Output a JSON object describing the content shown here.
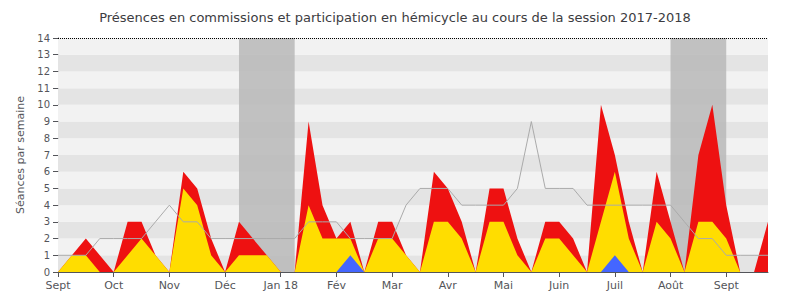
{
  "chart_data": {
    "type": "area",
    "title": "Présences en commissions et participation en hémicycle au cours de la session 2017-2018",
    "ylabel": "Séances par semaine",
    "x": [
      0,
      1,
      2,
      3,
      4,
      5,
      6,
      7,
      8,
      9,
      10,
      11,
      12,
      13,
      14,
      15,
      16,
      17,
      18,
      19,
      20,
      21,
      22,
      23,
      24,
      25,
      26,
      27,
      28,
      29,
      30,
      31,
      32,
      33,
      34,
      35,
      36,
      37,
      38,
      39,
      40,
      41,
      42,
      43,
      44,
      45,
      46,
      47,
      48,
      49,
      50,
      51
    ],
    "xlim": [
      0,
      51
    ],
    "xticks": [
      {
        "value": 0,
        "label": "Sept"
      },
      {
        "value": 4,
        "label": "Oct"
      },
      {
        "value": 8,
        "label": "Nov"
      },
      {
        "value": 12,
        "label": "Déc"
      },
      {
        "value": 16,
        "label": "Jan 18"
      },
      {
        "value": 20,
        "label": "Fév"
      },
      {
        "value": 24,
        "label": "Mar"
      },
      {
        "value": 28,
        "label": "Avr"
      },
      {
        "value": 32,
        "label": "Mai"
      },
      {
        "value": 36,
        "label": "Juin"
      },
      {
        "value": 40,
        "label": "Juil"
      },
      {
        "value": 44,
        "label": "Août"
      },
      {
        "value": 48,
        "label": "Sept"
      }
    ],
    "ylim": [
      0,
      14
    ],
    "yticks": [
      0,
      1,
      2,
      3,
      4,
      5,
      6,
      7,
      8,
      9,
      10,
      11,
      12,
      13,
      14
    ],
    "grid": false,
    "bands": [
      [
        13,
        17
      ],
      [
        44,
        48
      ]
    ],
    "hline": 14,
    "series": [
      {
        "type": "area",
        "color": "#ee1111",
        "values": [
          0,
          1,
          2,
          1,
          0,
          3,
          3,
          1,
          0,
          6,
          5,
          2,
          0,
          3,
          2,
          1,
          0,
          0,
          9,
          4,
          2,
          3,
          0,
          3,
          3,
          1,
          0,
          6,
          5,
          3,
          0,
          5,
          5,
          2,
          0,
          3,
          3,
          2,
          0,
          10,
          7,
          3,
          0,
          6,
          3,
          0,
          7,
          10,
          4,
          0,
          0,
          3
        ]
      },
      {
        "type": "area",
        "color": "#ffdd00",
        "values": [
          0,
          1,
          1,
          0,
          0,
          1,
          2,
          1,
          0,
          5,
          4,
          1,
          0,
          1,
          1,
          1,
          0,
          0,
          4,
          2,
          2,
          2,
          0,
          2,
          2,
          1,
          0,
          3,
          3,
          2,
          0,
          3,
          3,
          1,
          0,
          2,
          2,
          1,
          0,
          3,
          6,
          2,
          0,
          3,
          2,
          0,
          3,
          3,
          2,
          0,
          0,
          0
        ]
      },
      {
        "type": "area",
        "color": "#4466ff",
        "values": [
          0,
          0,
          0,
          0,
          0,
          0,
          0,
          0,
          0,
          0,
          0,
          0,
          0,
          0,
          0,
          0,
          0,
          0,
          0,
          0,
          0,
          1,
          0,
          0,
          0,
          0,
          0,
          0,
          0,
          0,
          0,
          0,
          0,
          0,
          0,
          0,
          0,
          0,
          0,
          0,
          1,
          0,
          0,
          0,
          0,
          0,
          0,
          0,
          0,
          0,
          0,
          0
        ]
      },
      {
        "type": "line",
        "color": "#aaaaaa",
        "values": [
          1,
          1,
          1,
          2,
          2,
          2,
          2,
          3,
          4,
          3,
          3,
          2,
          2,
          2,
          2,
          2,
          2,
          2,
          3,
          3,
          3,
          2,
          2,
          2,
          2,
          4,
          5,
          5,
          5,
          4,
          4,
          4,
          4,
          5,
          9,
          5,
          5,
          5,
          4,
          4,
          4,
          4,
          4,
          4,
          4,
          3,
          2,
          2,
          1,
          1,
          1,
          1
        ]
      }
    ]
  }
}
